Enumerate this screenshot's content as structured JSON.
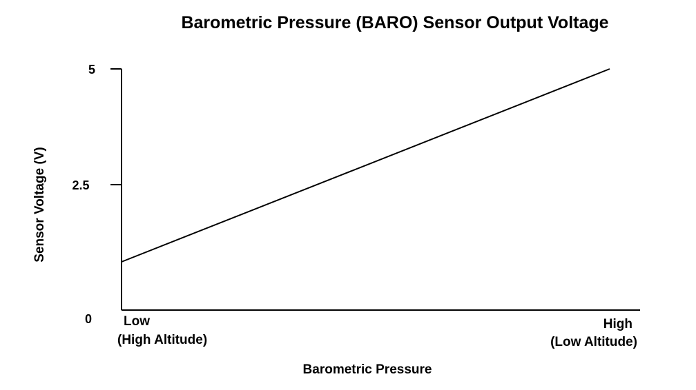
{
  "chart_data": {
    "type": "line",
    "title": "Barometric Pressure (BARO) Sensor Output Voltage",
    "xlabel": "Barometric Pressure",
    "ylabel": "Sensor Voltage (V)",
    "ylim": [
      0,
      5
    ],
    "yticks": [
      "0",
      "2.5",
      "5"
    ],
    "x_tick_labels": {
      "low": [
        "Low",
        "(High Altitude)"
      ],
      "high": [
        "High",
        "(Low Altitude)"
      ]
    },
    "x": [
      0,
      1
    ],
    "series": [
      {
        "values": [
          1.0,
          5.0
        ]
      }
    ],
    "grid": false,
    "legend": "none",
    "line_color": "#000000"
  }
}
